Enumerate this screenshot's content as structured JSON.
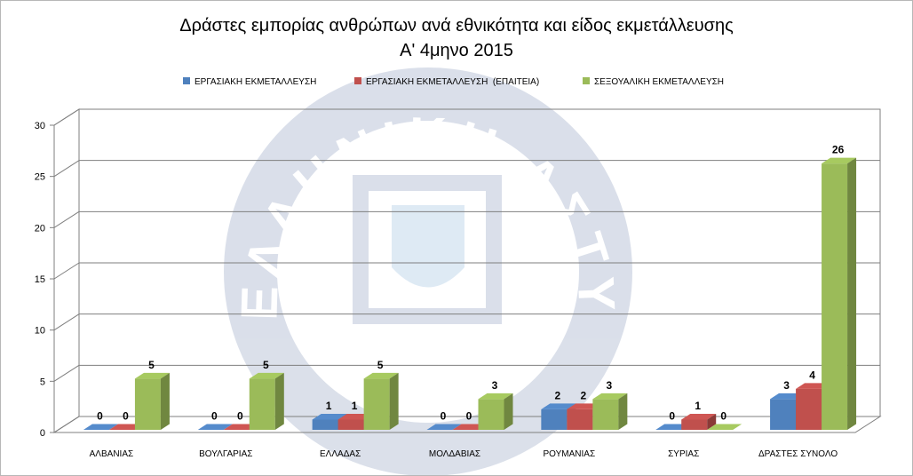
{
  "chart_data": {
    "type": "bar",
    "title": "Δράστες εμπορίας ανθρώπων ανά εθνικότητα και είδος εκμετάλλευσης",
    "subtitle": "Α' 4μηνο 2015",
    "categories": [
      "ΑΛΒΑΝΙΑΣ",
      "ΒΟΥΛΓΑΡΙΑΣ",
      "ΕΛΛΑΔΑΣ",
      "ΜΟΛΔΑΒΙΑΣ",
      "ΡΟΥΜΑΝΙΑΣ",
      "ΣΥΡΙΑΣ",
      "ΔΡΑΣΤΕΣ ΣΥΝΟΛΟ"
    ],
    "series": [
      {
        "name": "ΕΡΓΑΣΙΑΚΗ ΕΚΜΕΤΑΛΛΕΥΣΗ",
        "color": "#4f81bd",
        "values": [
          0,
          0,
          1,
          0,
          2,
          0,
          3
        ]
      },
      {
        "name": "ΕΡΓΑΣΙΑΚΗ ΕΚΜΕΤΑΛΛΕΥΣΗ  (ΕΠΑΙΤΕΙΑ)",
        "color": "#c0504d",
        "values": [
          0,
          0,
          1,
          0,
          2,
          1,
          4
        ]
      },
      {
        "name": "ΣΕΞΟΥΑΛΙΚΗ ΕΚΜΕΤΑΛΛΕΥΣΗ",
        "color": "#9bbb59",
        "values": [
          5,
          5,
          5,
          3,
          3,
          0,
          26
        ]
      }
    ],
    "ylim": [
      0,
      30
    ],
    "yticks": [
      0,
      5,
      10,
      15,
      20,
      25,
      30
    ],
    "grid": true,
    "legend_position": "top",
    "style": "3d-clustered-column",
    "watermark": "ΕΛΛΗΝΙΚΗ ΑΣΤΥΝΟΜΙΑ"
  }
}
